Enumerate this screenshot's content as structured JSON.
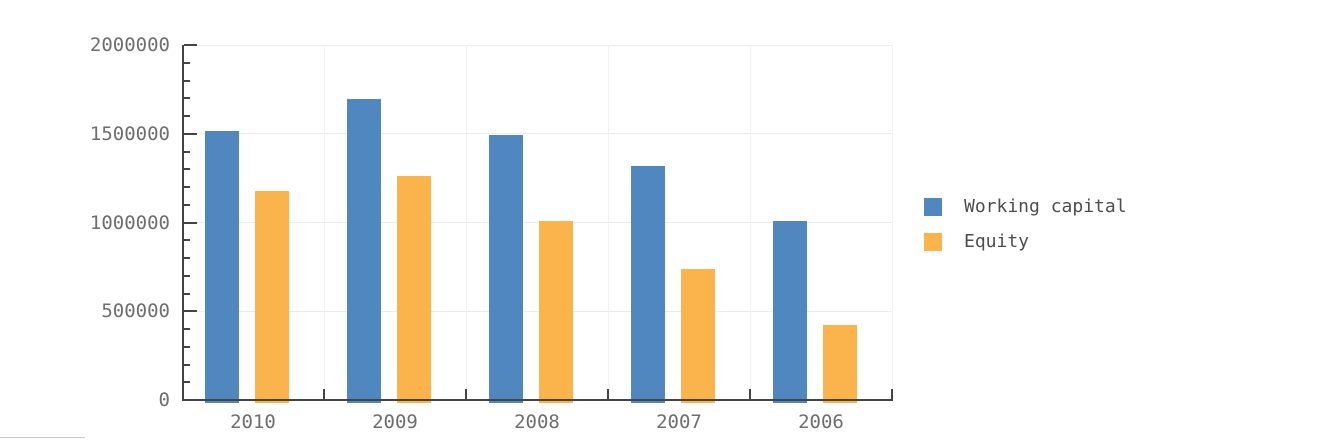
{
  "chart_data": {
    "type": "bar",
    "title": "",
    "categories": [
      "2010",
      "2009",
      "2008",
      "2007",
      "2006"
    ],
    "series": [
      {
        "name": "Working capital",
        "color": "#5087BE",
        "values": [
          1515000,
          1695000,
          1495000,
          1320000,
          1010000
        ]
      },
      {
        "name": "Equity",
        "color": "#FBB44C",
        "values": [
          1175000,
          1260000,
          1010000,
          740000,
          425000
        ]
      }
    ],
    "xlabel": "",
    "ylabel": "",
    "ylim": [
      0,
      2000000
    ],
    "y_major_tick_interval": 500000,
    "y_minor_tick_interval": 100000,
    "y_tick_labels": [
      "0",
      "500000",
      "1000000",
      "1500000",
      "2000000"
    ],
    "grid": true,
    "legend_position": "right",
    "legend_labels": [
      "Working capital",
      "Equity"
    ]
  },
  "colors": {
    "series_blue": "#5087BE",
    "series_orange": "#FBB44C",
    "axis_line": "#444444",
    "grid_horizontal": "#EBEBEB",
    "grid_vertical": "#F2F2F2",
    "axis_label_text": "#6E6E6E",
    "legend_text": "#4D4D4D",
    "background": "#FFFFFF"
  }
}
